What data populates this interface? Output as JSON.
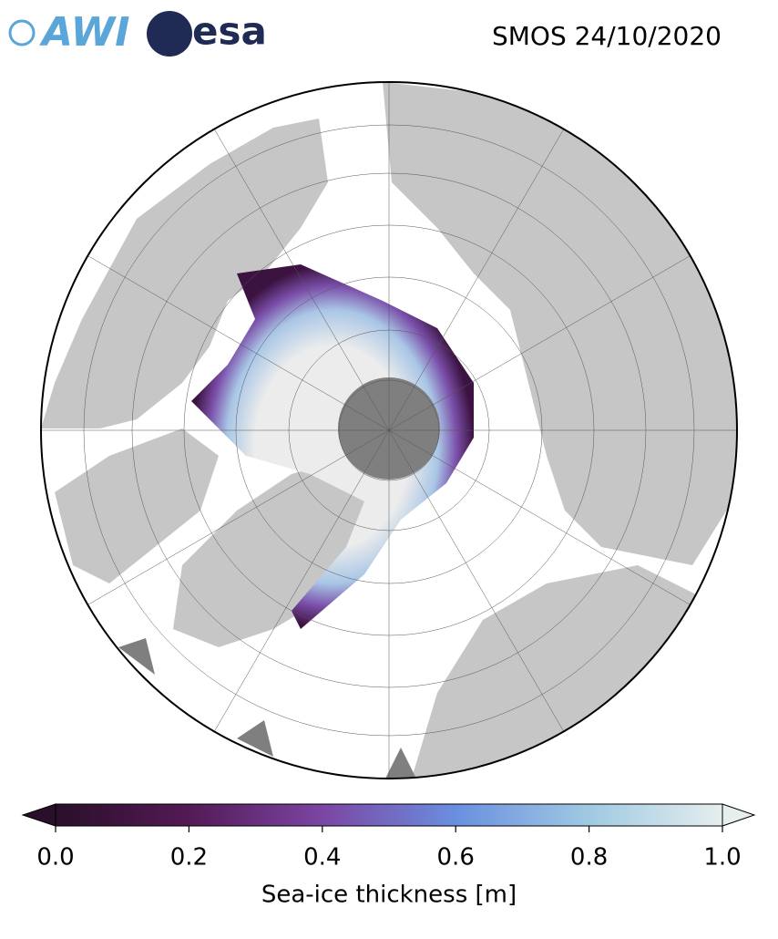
{
  "header": {
    "logos": [
      "AWI",
      "esa"
    ],
    "title": "SMOS 24/10/2020"
  },
  "colorbar": {
    "label": "Sea-ice thickness [m]",
    "lim": [
      0,
      1
    ],
    "ticks": [
      {
        "value": 0,
        "label": "0.0"
      },
      {
        "value": 0.2,
        "label": "0.2"
      },
      {
        "value": 0.4,
        "label": "0.4"
      },
      {
        "value": 0.6,
        "label": "0.6"
      },
      {
        "value": 0.8,
        "label": "0.8"
      },
      {
        "value": 1,
        "label": "1.0"
      }
    ]
  }
}
